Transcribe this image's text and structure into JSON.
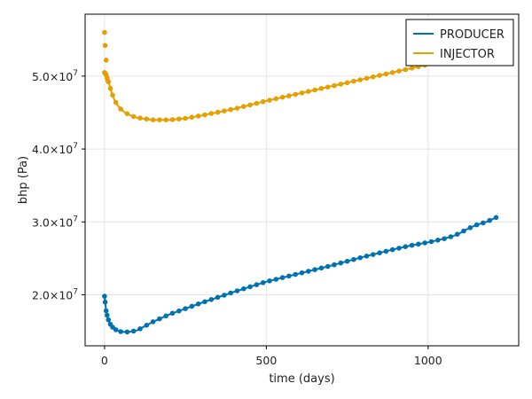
{
  "chart_data": {
    "type": "line",
    "title": "",
    "xlabel": "time (days)",
    "ylabel": "bhp (Pa)",
    "xlim": [
      -60,
      1280
    ],
    "ylim": [
      13000000.0,
      58500000.0
    ],
    "x_ticks": [
      {
        "value": 0,
        "label": "0"
      },
      {
        "value": 500,
        "label": "500"
      },
      {
        "value": 1000,
        "label": "1000"
      }
    ],
    "y_ticks": [
      {
        "value": 20000000.0,
        "mantissa": "2.0×10",
        "exp": "7"
      },
      {
        "value": 30000000.0,
        "mantissa": "3.0×10",
        "exp": "7"
      },
      {
        "value": 40000000.0,
        "mantissa": "4.0×10",
        "exp": "7"
      },
      {
        "value": 50000000.0,
        "mantissa": "5.0×10",
        "exp": "7"
      }
    ],
    "grid": true,
    "legend_position": "top-right",
    "series": [
      {
        "name": "PRODUCER",
        "color": "#0072b2",
        "line_x": [
          0,
          5,
          10,
          15,
          20,
          30,
          40,
          50,
          60,
          75,
          100,
          150,
          200,
          300,
          400,
          500,
          600,
          700,
          800,
          900,
          950,
          1000,
          1050,
          1080,
          1100,
          1120,
          1150,
          1180,
          1210
        ],
        "line_y": [
          19800000.0,
          17800000.0,
          16800000.0,
          16200000.0,
          15800000.0,
          15300000.0,
          15100000.0,
          14950000.0,
          14900000.0,
          14900000.0,
          15100000.0,
          16300000.0,
          17300000.0,
          18900000.0,
          20400000.0,
          21800000.0,
          22900000.0,
          24000000.0,
          25200000.0,
          26300000.0,
          26800000.0,
          27200000.0,
          27700000.0,
          28100000.0,
          28500000.0,
          29000000.0,
          29600000.0,
          30000000.0,
          30600000.0
        ]
      },
      {
        "name": "INJECTOR",
        "color": "#e69f00",
        "line_x": [
          0,
          5,
          10,
          15,
          20,
          30,
          40,
          50,
          60,
          80,
          100,
          150,
          200,
          250,
          300,
          400,
          500,
          600,
          700,
          800,
          900,
          950,
          1000
        ],
        "line_y": [
          50500000.0,
          50200000.0,
          49500000.0,
          48800000.0,
          48000000.0,
          46800000.0,
          46000000.0,
          45500000.0,
          45100000.0,
          44600000.0,
          44300000.0,
          44000000.0,
          44000000.0,
          44200000.0,
          44600000.0,
          45500000.0,
          46600000.0,
          47600000.0,
          48600000.0,
          49600000.0,
          50600000.0,
          51100000.0,
          51600000.0
        ]
      }
    ]
  }
}
